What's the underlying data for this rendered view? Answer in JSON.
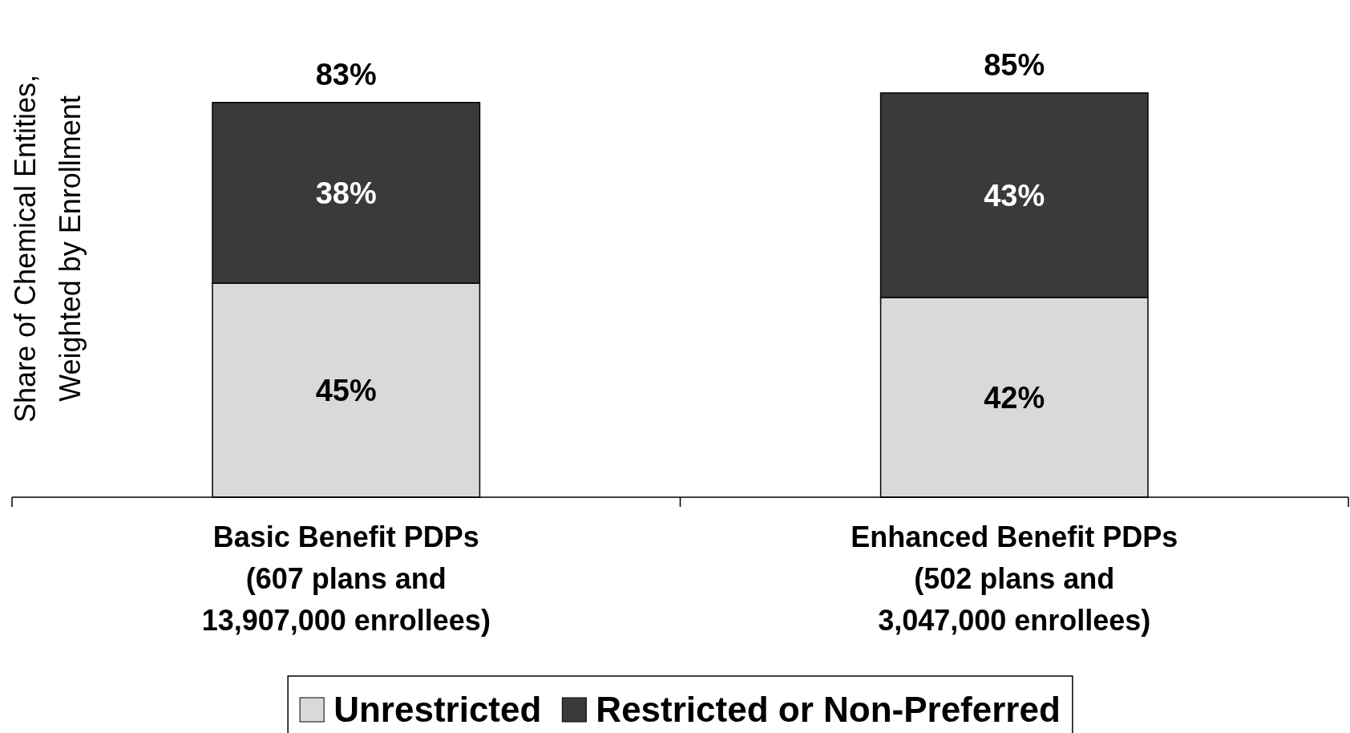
{
  "chart_data": {
    "type": "bar",
    "stacked": true,
    "ylabel": "Share of Chemical Entities,\nWeighted by Enrollment",
    "categories": [
      "Basic Benefit PDPs\n(607 plans and\n13,907,000 enrollees)",
      "Enhanced Benefit PDPs\n(502 plans and\n3,047,000 enrollees)"
    ],
    "series": [
      {
        "name": "Unrestricted",
        "color": "#d9d9d9",
        "values": [
          45,
          42
        ],
        "value_labels": [
          "45%",
          "42%"
        ]
      },
      {
        "name": "Restricted or Non-Preferred",
        "color": "#3a3a3a",
        "values": [
          38,
          43
        ],
        "value_labels": [
          "38%",
          "43%"
        ]
      }
    ],
    "totals": [
      "83%",
      "85%"
    ],
    "legend": "bottom"
  }
}
